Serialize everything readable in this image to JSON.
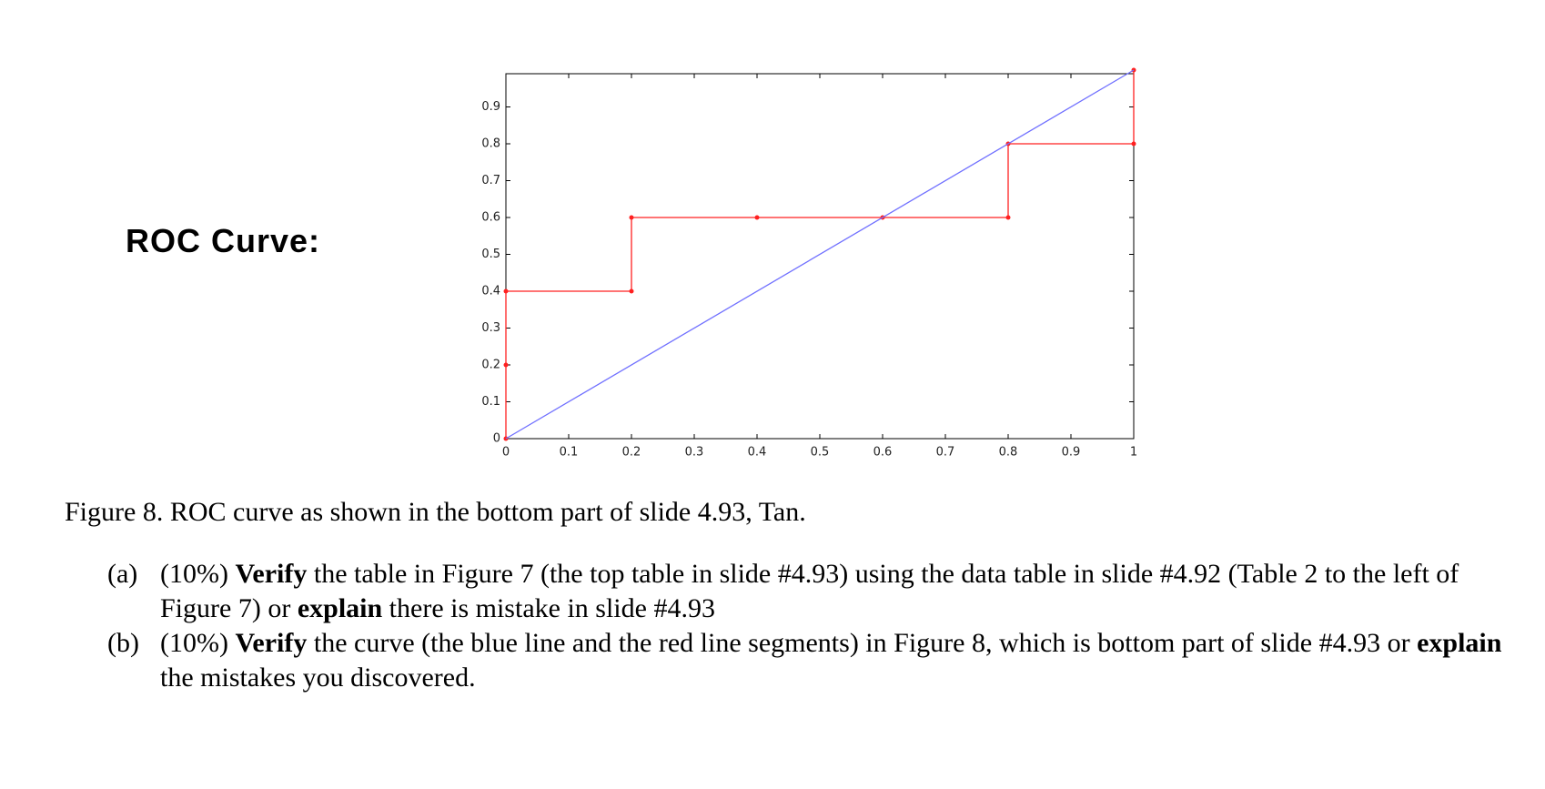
{
  "title": "ROC Curve:",
  "chart_data": {
    "type": "line",
    "xlim": [
      0,
      1
    ],
    "ylim": [
      0,
      1
    ],
    "xticks": [
      0,
      0.1,
      0.2,
      0.3,
      0.4,
      0.5,
      0.6,
      0.7,
      0.8,
      0.9,
      1
    ],
    "yticks": [
      0,
      0.1,
      0.2,
      0.3,
      0.4,
      0.5,
      0.6,
      0.7,
      0.8,
      0.9
    ],
    "series": [
      {
        "color": "#ff2020",
        "markers": true,
        "x": [
          0,
          0,
          0,
          0.2,
          0.2,
          0.4,
          0.6,
          0.8,
          0.8,
          1,
          1
        ],
        "values": [
          0,
          0.2,
          0.4,
          0.4,
          0.6,
          0.6,
          0.6,
          0.6,
          0.8,
          0.8,
          1
        ]
      },
      {
        "color": "#7070ff",
        "markers": false,
        "x": [
          0,
          1
        ],
        "values": [
          0,
          1
        ]
      }
    ]
  },
  "caption": "Figure 8. ROC curve as shown in the bottom part of slide 4.93, Tan.",
  "items": [
    {
      "label": "(a)",
      "runs": [
        {
          "text": "(10%) "
        },
        {
          "text": "Verify",
          "bold": true
        },
        {
          "text": " the table in Figure 7 (the top table in slide #4.93) using the data table in slide #4.92 (Table 2 to the left of Figure 7) or "
        },
        {
          "text": "explain",
          "bold": true
        },
        {
          "text": " there is mistake in slide #4.93"
        }
      ]
    },
    {
      "label": "(b)",
      "runs": [
        {
          "text": "(10%) "
        },
        {
          "text": "Verify",
          "bold": true
        },
        {
          "text": " the curve (the blue line and the red line segments) in Figure 8, which is bottom part of slide #4.93 or "
        },
        {
          "text": "explain",
          "bold": true
        },
        {
          "text": " the mistakes you discovered."
        }
      ]
    }
  ]
}
